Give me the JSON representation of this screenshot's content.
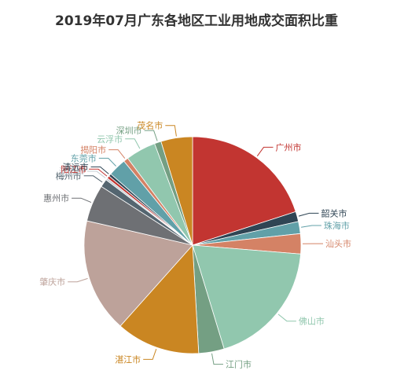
{
  "chart_data": {
    "type": "pie",
    "title": "2019年07月广东各地区工业用地成交面积比重",
    "start_angle_deg": 90,
    "direction": "clockwise",
    "legend": "none",
    "slices": [
      {
        "name": "广州市",
        "value": 20.0,
        "color": "#c23531"
      },
      {
        "name": "韶关市",
        "value": 1.5,
        "color": "#2f4554"
      },
      {
        "name": "珠海市",
        "value": 1.8,
        "color": "#61a0a8"
      },
      {
        "name": "汕头市",
        "value": 3.0,
        "color": "#d48265"
      },
      {
        "name": "佛山市",
        "value": 19.0,
        "color": "#91c7ae"
      },
      {
        "name": "江门市",
        "value": 3.8,
        "color": "#749f83"
      },
      {
        "name": "湛江市",
        "value": 12.5,
        "color": "#ca8622"
      },
      {
        "name": "肇庆市",
        "value": 17.0,
        "color": "#bda29a"
      },
      {
        "name": "惠州市",
        "value": 5.5,
        "color": "#6e7074"
      },
      {
        "name": "梅州市",
        "value": 1.2,
        "color": "#546570"
      },
      {
        "name": "河源市",
        "value": 0.3,
        "color": "#c4ccd3"
      },
      {
        "name": "阳江市",
        "value": 0.4,
        "color": "#c23531"
      },
      {
        "name": "清远市",
        "value": 0.4,
        "color": "#2f4554"
      },
      {
        "name": "东莞市",
        "value": 2.7,
        "color": "#61a0a8"
      },
      {
        "name": "揭阳市",
        "value": 0.7,
        "color": "#d48265"
      },
      {
        "name": "云浮市",
        "value": 4.5,
        "color": "#91c7ae"
      },
      {
        "name": "深圳市",
        "value": 1.0,
        "color": "#749f83"
      },
      {
        "name": "茂名市",
        "value": 4.7,
        "color": "#ca8622"
      }
    ]
  }
}
